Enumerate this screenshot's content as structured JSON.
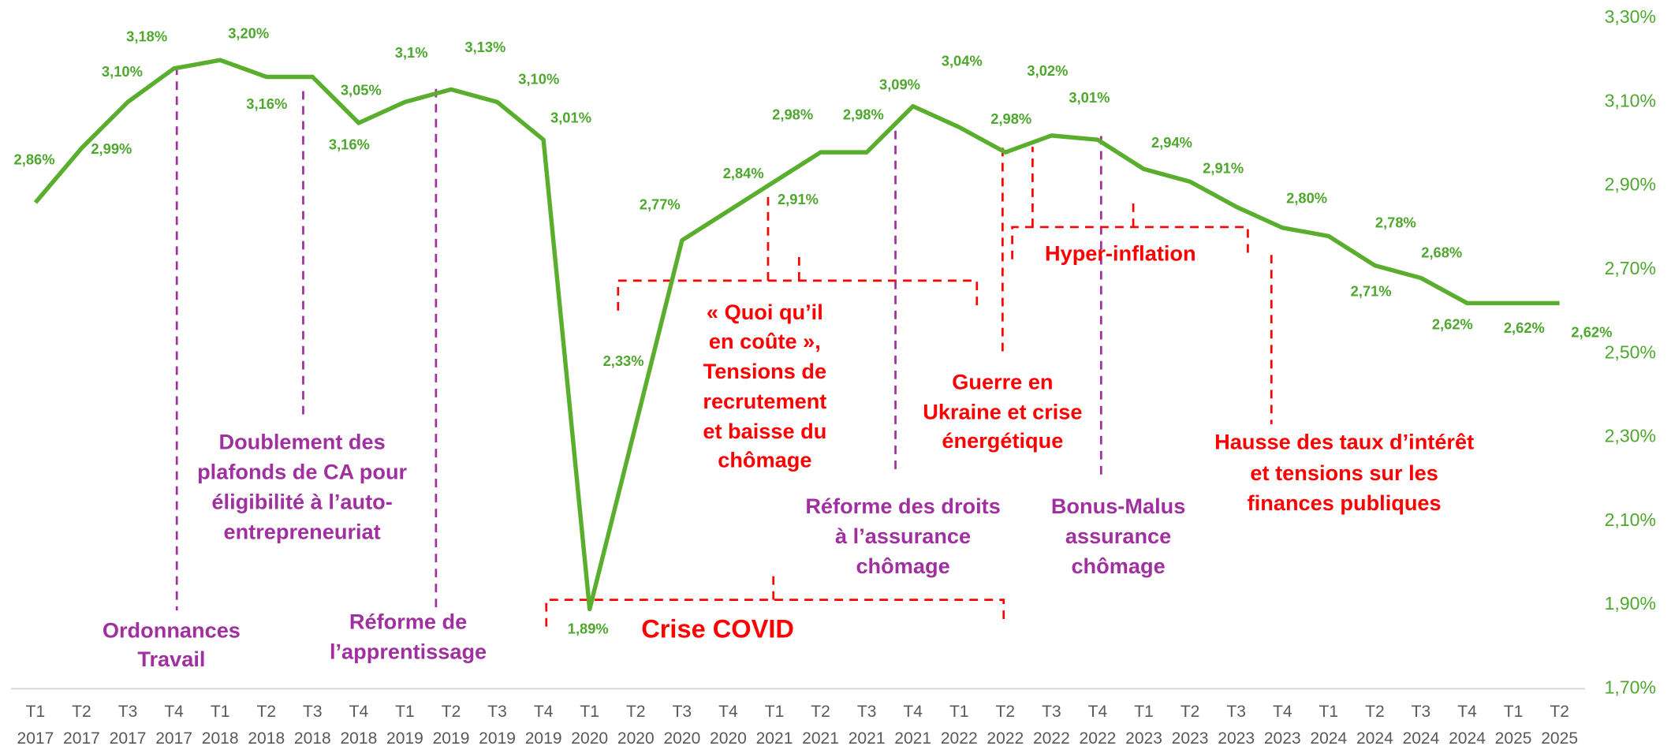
{
  "chart_data": {
    "type": "line",
    "categories": [
      [
        "T1",
        "2017"
      ],
      [
        "T2",
        "2017"
      ],
      [
        "T3",
        "2017"
      ],
      [
        "T4",
        "2017"
      ],
      [
        "T1",
        "2018"
      ],
      [
        "T2",
        "2018"
      ],
      [
        "T3",
        "2018"
      ],
      [
        "T4",
        "2018"
      ],
      [
        "T1",
        "2019"
      ],
      [
        "T2",
        "2019"
      ],
      [
        "T3",
        "2019"
      ],
      [
        "T4",
        "2019"
      ],
      [
        "T1",
        "2020"
      ],
      [
        "T2",
        "2020"
      ],
      [
        "T3",
        "2020"
      ],
      [
        "T4",
        "2020"
      ],
      [
        "T1",
        "2021"
      ],
      [
        "T2",
        "2021"
      ],
      [
        "T3",
        "2021"
      ],
      [
        "T4",
        "2021"
      ],
      [
        "T1",
        "2022"
      ],
      [
        "T2",
        "2022"
      ],
      [
        "T3",
        "2022"
      ],
      [
        "T4",
        "2022"
      ],
      [
        "T1",
        "2023"
      ],
      [
        "T2",
        "2023"
      ],
      [
        "T3",
        "2023"
      ],
      [
        "T4",
        "2023"
      ],
      [
        "T1",
        "2024"
      ],
      [
        "T2",
        "2024"
      ],
      [
        "T3",
        "2024"
      ],
      [
        "T4",
        "2024"
      ],
      [
        "T1",
        "2025"
      ],
      [
        "T2",
        "2025"
      ]
    ],
    "series": [
      {
        "color": "#5aae2e",
        "values": [
          2.86,
          2.99,
          3.1,
          3.18,
          3.2,
          3.16,
          3.16,
          3.05,
          3.1,
          3.13,
          3.1,
          3.01,
          1.89,
          2.33,
          2.77,
          2.84,
          2.91,
          2.98,
          2.98,
          3.09,
          3.04,
          2.98,
          3.02,
          3.01,
          2.94,
          2.91,
          2.85,
          2.8,
          2.78,
          2.71,
          2.68,
          2.62,
          2.62,
          2.62
        ],
        "value_labels": [
          "2,86%",
          "2,99%",
          "3,10%",
          "3,18%",
          "3,20%",
          "3,16%",
          "3,16%",
          "3,05%",
          "3,1%",
          "3,13%",
          "3,10%",
          "3,01%",
          "1,89%",
          "2,33%",
          "2,77%",
          "2,84%",
          "2,91%",
          "2,98%",
          "2,98%",
          "3,09%",
          "3,04%",
          "2,98%",
          "3,02%",
          "3,01%",
          "2,94%",
          "2,91%",
          null,
          "2,80%",
          "2,78%",
          "2,71%",
          "2,68%",
          "2,62%",
          "2,62%",
          "2,62%"
        ]
      }
    ],
    "ylim": [
      1.7,
      3.3
    ],
    "yticks": [
      {
        "value": 1.7,
        "label": "1,70%"
      },
      {
        "value": 1.9,
        "label": "1,90%"
      },
      {
        "value": 2.1,
        "label": "2,10%"
      },
      {
        "value": 2.3,
        "label": "2,30%"
      },
      {
        "value": 2.5,
        "label": "2,50%"
      },
      {
        "value": 2.7,
        "label": "2,70%"
      },
      {
        "value": 2.9,
        "label": "2,90%"
      },
      {
        "value": 3.1,
        "label": "3,10%"
      },
      {
        "value": 3.3,
        "label": "3,30%"
      }
    ],
    "annotations": [
      {
        "lines": [
          "Ordonnances",
          "Travail"
        ]
      },
      {
        "lines": [
          "Doublement des",
          "plafonds de CA pour",
          "éligibilité à l’auto-",
          "entrepreneuriat"
        ]
      },
      {
        "lines": [
          "Réforme de",
          "l’apprentissage"
        ]
      },
      {
        "lines": [
          "Réforme des droits",
          "à l’assurance",
          "chômage"
        ]
      },
      {
        "lines": [
          "Bonus-Malus",
          "assurance",
          "chômage"
        ]
      },
      {
        "lines": [
          "« Quoi qu’il",
          "en coûte »,",
          "Tensions de",
          "recrutement",
          "et baisse du",
          "chômage"
        ]
      },
      {
        "lines": [
          "Guerre en",
          "Ukraine et crise",
          "énergétique"
        ]
      },
      {
        "lines": [
          "Hyper-inflation"
        ]
      },
      {
        "lines": [
          "Hausse des taux d’intérêt",
          "et tensions sur les",
          "finances publiques"
        ]
      },
      {
        "lines": [
          "Crise COVID"
        ]
      }
    ]
  }
}
